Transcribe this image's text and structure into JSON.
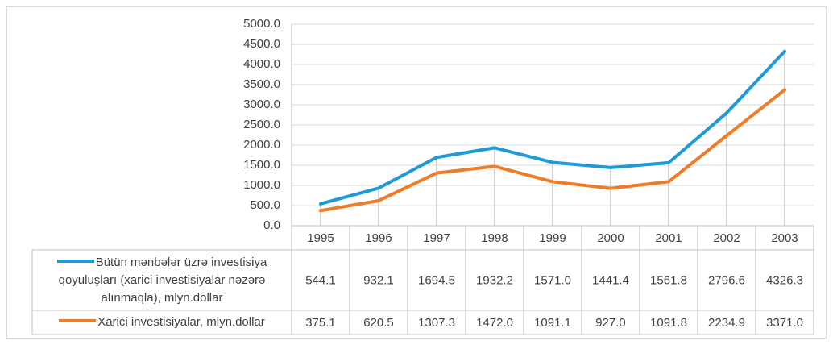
{
  "chart_data": {
    "type": "line",
    "categories": [
      "1995",
      "1996",
      "1997",
      "1998",
      "1999",
      "2000",
      "2001",
      "2002",
      "2003"
    ],
    "series": [
      {
        "name": "Bütün mənbələr üzrə investisiya qoyuluşları (xarici investisiyalar nəzərə alınmaqla), mlyn.dollar",
        "color": "#1e9ad6",
        "values": [
          544.1,
          932.1,
          1694.5,
          1932.2,
          1571.0,
          1441.4,
          1561.8,
          2796.6,
          4326.3
        ],
        "value_labels": [
          "544.1",
          "932.1",
          "1694.5",
          "1932.2",
          "1571.0",
          "1441.4",
          "1561.8",
          "2796.6",
          "4326.3"
        ]
      },
      {
        "name": "Xarici investisiyalar, mlyn.dollar",
        "color": "#f07c28",
        "values": [
          375.1,
          620.5,
          1307.3,
          1472.0,
          1091.1,
          927.0,
          1091.8,
          2234.9,
          3371.0
        ],
        "value_labels": [
          "375.1",
          "620.5",
          "1307.3",
          "1472.0",
          "1091.1",
          "927.0",
          "1091.8",
          "2234.9",
          "3371.0"
        ]
      }
    ],
    "ylim": [
      0,
      5000
    ],
    "yticks": [
      {
        "value": 0,
        "label": "0.0"
      },
      {
        "value": 500,
        "label": "500.0"
      },
      {
        "value": 1000,
        "label": "1000.0"
      },
      {
        "value": 1500,
        "label": "1500.0"
      },
      {
        "value": 2000,
        "label": "2000.0"
      },
      {
        "value": 2500,
        "label": "2500.0"
      },
      {
        "value": 3000,
        "label": "3000.0"
      },
      {
        "value": 3500,
        "label": "3500.0"
      },
      {
        "value": 4000,
        "label": "4000.0"
      },
      {
        "value": 4500,
        "label": "4500.0"
      },
      {
        "value": 5000,
        "label": "5000.0"
      }
    ],
    "grid": true,
    "drop_lines": true
  }
}
